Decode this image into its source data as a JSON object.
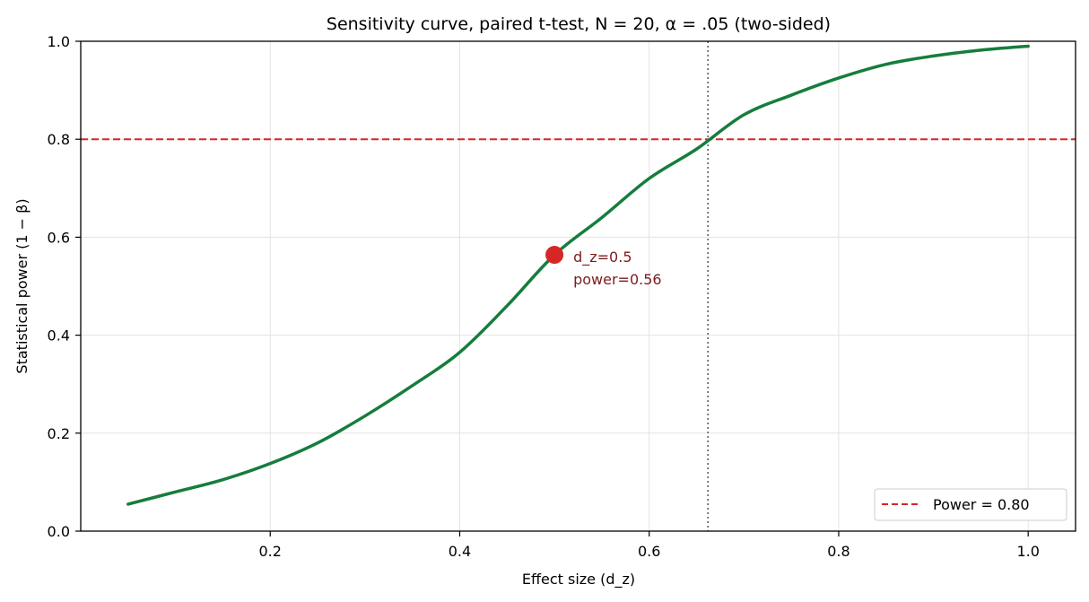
{
  "chart_data": {
    "type": "line",
    "title": "Sensitivity curve, paired t-test, N = 20, α = .05 (two-sided)",
    "xlabel": "Effect size (d_z)",
    "ylabel": "Statistical power (1 − β)",
    "xlim": [
      0.0,
      1.05
    ],
    "ylim": [
      0.0,
      1.0
    ],
    "xticks": [
      0.2,
      0.4,
      0.6,
      0.8,
      1.0
    ],
    "xtick_labels": [
      "0.2",
      "0.4",
      "0.6",
      "0.8",
      "1.0"
    ],
    "yticks": [
      0.0,
      0.2,
      0.4,
      0.6,
      0.8,
      1.0
    ],
    "ytick_labels": [
      "0.0",
      "0.2",
      "0.4",
      "0.6",
      "0.8",
      "1.0"
    ],
    "grid": true,
    "legend_position": "lower-right",
    "series": [
      {
        "name": "",
        "color": "#167d3d",
        "x": [
          0.05,
          0.1,
          0.15,
          0.2,
          0.25,
          0.3,
          0.35,
          0.4,
          0.45,
          0.5,
          0.55,
          0.6,
          0.65,
          0.7,
          0.75,
          0.8,
          0.85,
          0.9,
          0.95,
          1.0
        ],
        "y": [
          0.055,
          0.08,
          0.105,
          0.138,
          0.18,
          0.235,
          0.297,
          0.365,
          0.46,
          0.564,
          0.64,
          0.72,
          0.78,
          0.85,
          0.89,
          0.925,
          0.953,
          0.97,
          0.982,
          0.99
        ]
      }
    ],
    "reference_lines": [
      {
        "orientation": "horizontal",
        "value": 0.8,
        "label": "Power = 0.80",
        "color": "#d62728",
        "style": "dashed"
      },
      {
        "orientation": "vertical",
        "value": 0.662,
        "color": "#555555",
        "style": "dotted"
      }
    ],
    "highlight_point": {
      "x": 0.5,
      "y": 0.564,
      "color": "#d62728",
      "label_lines": [
        "d_z=0.5",
        "power=0.56"
      ],
      "label_color": "#7b1c1c"
    },
    "legend": [
      {
        "label": "Power = 0.80",
        "color": "#d62728",
        "style": "dashed"
      }
    ]
  }
}
